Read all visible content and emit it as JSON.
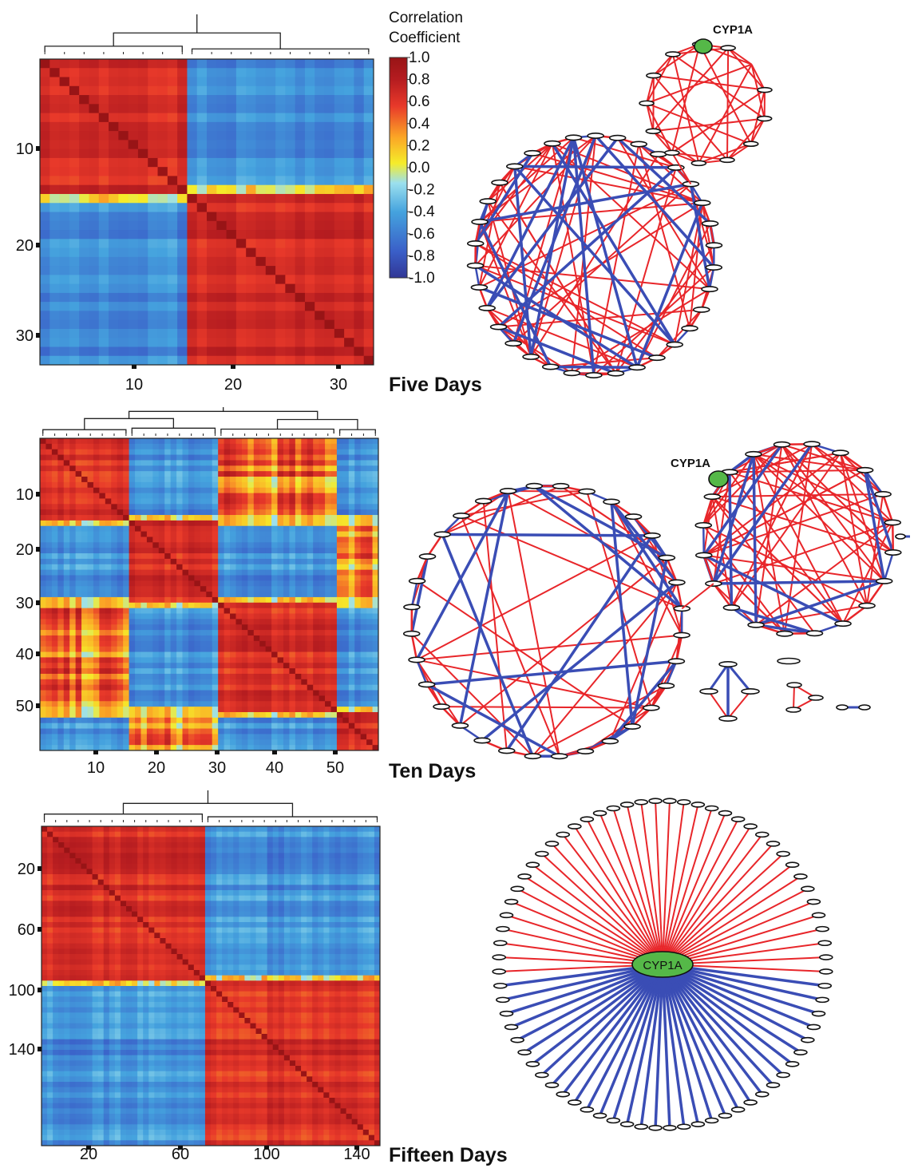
{
  "colors": {
    "positive_edge": "#e8262a",
    "negative_edge": "#3a4db5",
    "hub_node": "#55b848",
    "colormap": [
      "#313695",
      "#3a5fc8",
      "#45a3de",
      "#9be0ee",
      "#f5ec2a",
      "#fba526",
      "#e8392a",
      "#b51c20",
      "#981416"
    ]
  },
  "colorbar": {
    "title_line1": "Correlation",
    "title_line2": "Coefficient",
    "ticks": [
      "1.0",
      "0.8",
      "0.6",
      "0.4",
      "0.2",
      "0.0",
      "-0.2",
      "-0.4",
      "-0.6",
      "-0.8",
      "-1.0"
    ],
    "range": [
      -1.0,
      1.0
    ]
  },
  "hub_gene": "CYP1A",
  "chart_data": [
    {
      "type": "heatmap",
      "title": "Five Days",
      "n_genes": 34,
      "xticks": [
        "10",
        "20",
        "30"
      ],
      "yticks": [
        "10",
        "20",
        "30"
      ],
      "clusters": [
        15,
        19
      ],
      "value_range": [
        -1.0,
        1.0
      ],
      "network": {
        "hub": "CYP1A",
        "components": 2,
        "edge_colors": [
          "positive",
          "negative"
        ]
      }
    },
    {
      "type": "heatmap",
      "title": "Ten Days",
      "n_genes": 57,
      "xticks": [
        "10",
        "20",
        "30",
        "40",
        "50"
      ],
      "yticks": [
        "10",
        "20",
        "30",
        "40",
        "50"
      ],
      "clusters": [
        15,
        15,
        20,
        7
      ],
      "value_range": [
        -1.0,
        1.0
      ],
      "network": {
        "hub": "CYP1A",
        "components": 5,
        "edge_colors": [
          "positive",
          "negative"
        ]
      }
    },
    {
      "type": "heatmap",
      "title": "Fifteen Days",
      "n_genes": 150,
      "xticks": [
        "20",
        "60",
        "100",
        "140"
      ],
      "yticks": [
        "20",
        "60",
        "100",
        "140"
      ],
      "clusters": [
        73,
        77
      ],
      "value_range": [
        -1.0,
        1.0
      ],
      "network": {
        "hub": "CYP1A",
        "positive_neighbors": 35,
        "negative_neighbors": 37
      }
    }
  ]
}
